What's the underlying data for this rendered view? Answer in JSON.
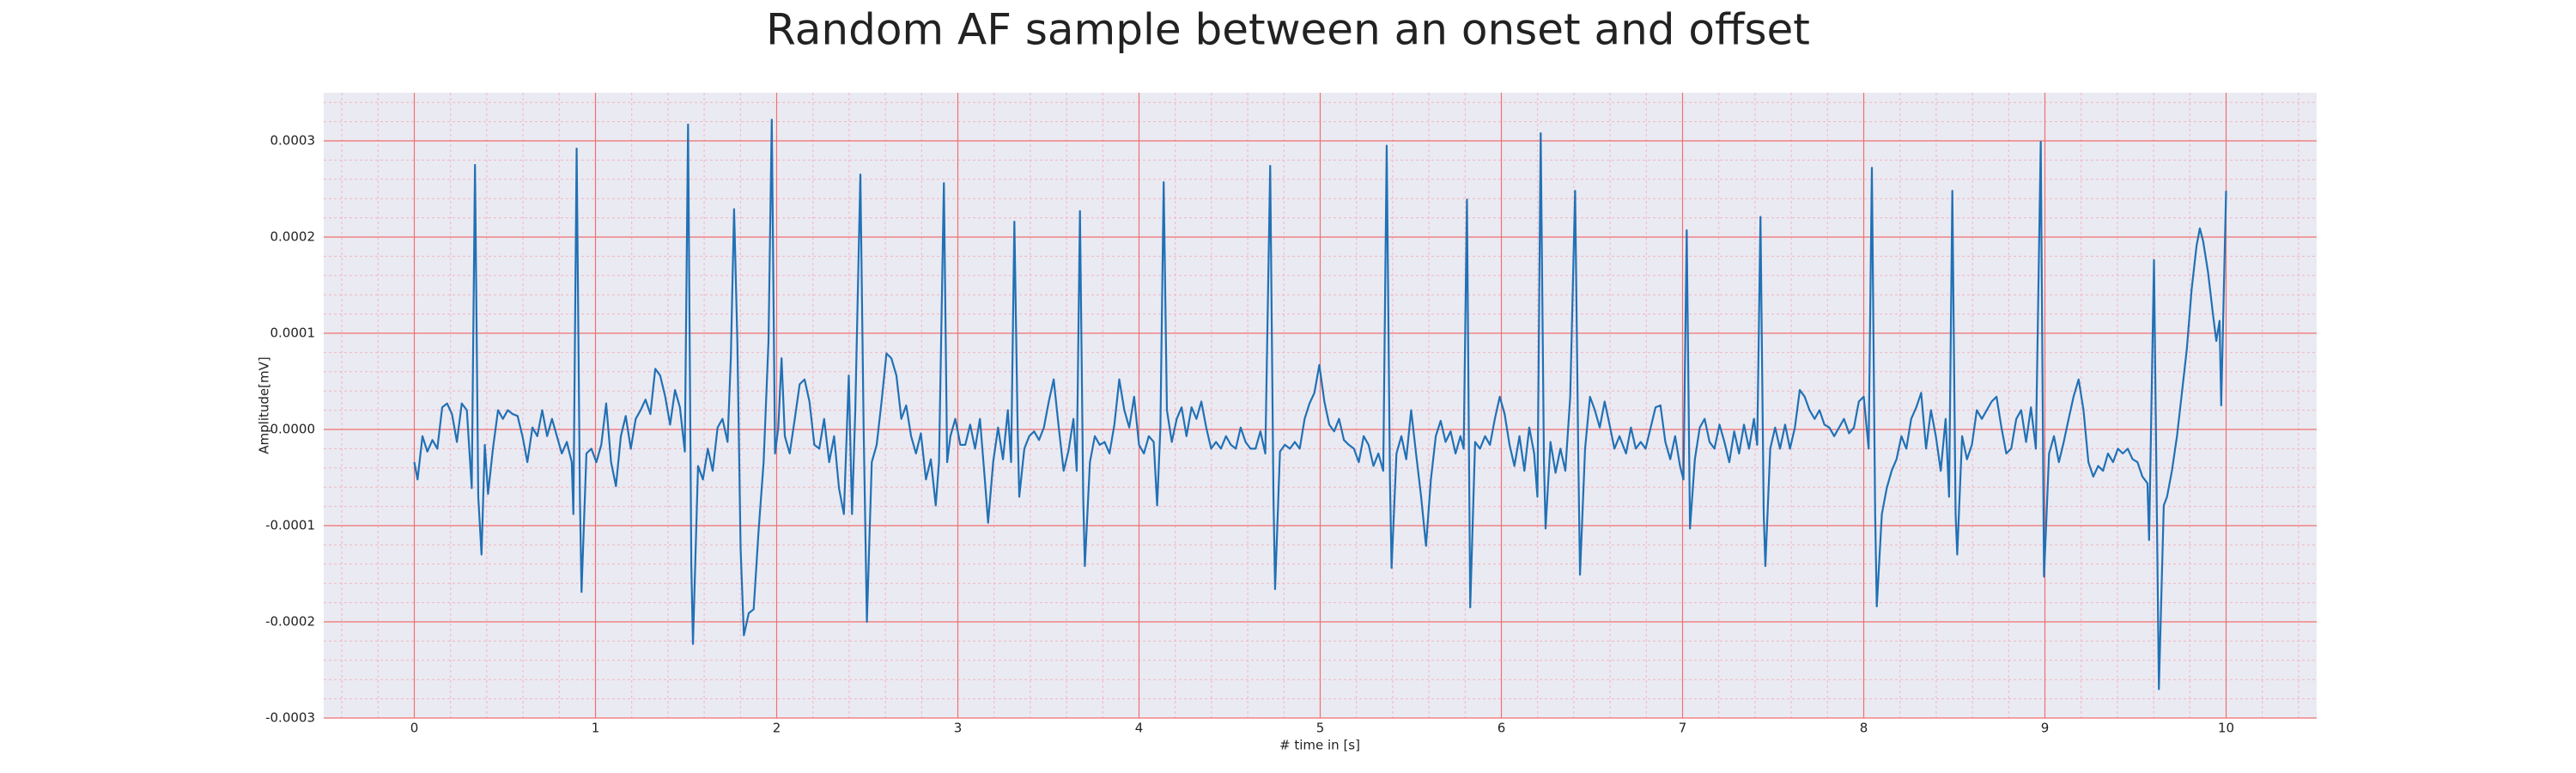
{
  "chart_data": {
    "type": "line",
    "title": "Random AF sample between an onset and offset",
    "x_label": "# time in [s]",
    "y_label": "Amplitude[mV]",
    "color": "#2171b5",
    "grid": true,
    "minor_grid": true,
    "grid_color": "#f07070",
    "minor_grid_color": "#f3b5c0",
    "background": "#eaeaf2",
    "xlim": [
      -0.5,
      10.5
    ],
    "ylim": [
      -0.0003,
      0.00035
    ],
    "xticks": [
      0,
      1,
      2,
      3,
      4,
      5,
      6,
      7,
      8,
      9,
      10
    ],
    "yticks": [
      -0.0003,
      -0.0002,
      -0.0001,
      {
        "value": 0,
        "label": "0.0000"
      },
      0.0001,
      0.0002,
      0.0003
    ],
    "x": [
      0,
      0.018,
      0.045,
      0.072,
      0.1,
      0.127,
      0.154,
      0.181,
      0.208,
      0.235,
      0.262,
      0.29,
      0.317,
      0.335,
      0.353,
      0.371,
      0.389,
      0.407,
      0.434,
      0.462,
      0.489,
      0.516,
      0.543,
      0.57,
      0.597,
      0.624,
      0.652,
      0.679,
      0.706,
      0.733,
      0.76,
      0.787,
      0.814,
      0.842,
      0.869,
      0.878,
      0.896,
      0.914,
      0.923,
      0.95,
      0.977,
      1.005,
      1.032,
      1.059,
      1.086,
      1.113,
      1.14,
      1.167,
      1.195,
      1.222,
      1.249,
      1.276,
      1.303,
      1.33,
      1.357,
      1.385,
      1.412,
      1.439,
      1.466,
      1.493,
      1.511,
      1.529,
      1.538,
      1.566,
      1.593,
      1.62,
      1.647,
      1.674,
      1.701,
      1.729,
      1.747,
      1.765,
      1.783,
      1.801,
      1.819,
      1.846,
      1.873,
      1.9,
      1.928,
      1.955,
      1.973,
      1.991,
      2.009,
      2.027,
      2.045,
      2.072,
      2.1,
      2.127,
      2.154,
      2.181,
      2.208,
      2.235,
      2.262,
      2.29,
      2.317,
      2.344,
      2.371,
      2.398,
      2.416,
      2.434,
      2.462,
      2.48,
      2.498,
      2.525,
      2.552,
      2.579,
      2.606,
      2.633,
      2.661,
      2.688,
      2.715,
      2.742,
      2.769,
      2.796,
      2.824,
      2.851,
      2.878,
      2.896,
      2.923,
      2.941,
      2.959,
      2.986,
      3.014,
      3.041,
      3.068,
      3.095,
      3.122,
      3.149,
      3.167,
      3.195,
      3.222,
      3.249,
      3.276,
      3.294,
      3.312,
      3.33,
      3.339,
      3.367,
      3.394,
      3.421,
      3.448,
      3.475,
      3.502,
      3.529,
      3.557,
      3.584,
      3.611,
      3.638,
      3.656,
      3.674,
      3.692,
      3.701,
      3.729,
      3.756,
      3.783,
      3.81,
      3.837,
      3.864,
      3.891,
      3.919,
      3.946,
      3.973,
      4.0,
      4.027,
      4.054,
      4.081,
      4.1,
      4.118,
      4.136,
      4.154,
      4.181,
      4.208,
      4.235,
      4.262,
      4.29,
      4.317,
      4.344,
      4.371,
      4.398,
      4.425,
      4.452,
      4.48,
      4.507,
      4.534,
      4.561,
      4.588,
      4.615,
      4.643,
      4.67,
      4.697,
      4.724,
      4.742,
      4.751,
      4.778,
      4.805,
      4.833,
      4.86,
      4.887,
      4.914,
      4.941,
      4.968,
      4.995,
      5.023,
      5.05,
      5.077,
      5.104,
      5.131,
      5.158,
      5.186,
      5.213,
      5.24,
      5.267,
      5.294,
      5.321,
      5.348,
      5.367,
      5.385,
      5.394,
      5.421,
      5.448,
      5.475,
      5.502,
      5.529,
      5.557,
      5.584,
      5.611,
      5.638,
      5.665,
      5.692,
      5.72,
      5.747,
      5.774,
      5.792,
      5.81,
      5.828,
      5.855,
      5.882,
      5.91,
      5.937,
      5.964,
      5.991,
      6.018,
      6.045,
      6.072,
      6.1,
      6.127,
      6.154,
      6.181,
      6.199,
      6.217,
      6.235,
      6.244,
      6.271,
      6.299,
      6.326,
      6.353,
      6.38,
      6.407,
      6.425,
      6.434,
      6.462,
      6.489,
      6.516,
      6.543,
      6.57,
      6.597,
      6.624,
      6.652,
      6.688,
      6.715,
      6.742,
      6.769,
      6.796,
      6.824,
      6.851,
      6.878,
      6.905,
      6.932,
      6.959,
      6.986,
      7.005,
      7.023,
      7.041,
      7.068,
      7.095,
      7.122,
      7.149,
      7.176,
      7.204,
      7.231,
      7.258,
      7.285,
      7.312,
      7.339,
      7.367,
      7.394,
      7.412,
      7.43,
      7.448,
      7.457,
      7.484,
      7.511,
      7.538,
      7.566,
      7.593,
      7.62,
      7.647,
      7.674,
      7.701,
      7.729,
      7.756,
      7.783,
      7.81,
      7.837,
      7.864,
      7.891,
      7.919,
      7.946,
      7.973,
      8.0,
      8.027,
      8.045,
      8.063,
      8.072,
      8.1,
      8.127,
      8.154,
      8.181,
      8.208,
      8.235,
      8.262,
      8.29,
      8.317,
      8.344,
      8.371,
      8.398,
      8.425,
      8.452,
      8.471,
      8.489,
      8.507,
      8.516,
      8.543,
      8.57,
      8.597,
      8.624,
      8.652,
      8.679,
      8.706,
      8.733,
      8.76,
      8.787,
      8.814,
      8.842,
      8.869,
      8.896,
      8.923,
      8.95,
      8.977,
      8.995,
      9.023,
      9.05,
      9.077,
      9.104,
      9.131,
      9.158,
      9.186,
      9.213,
      9.24,
      9.267,
      9.294,
      9.321,
      9.348,
      9.376,
      9.403,
      9.43,
      9.457,
      9.484,
      9.511,
      9.538,
      9.566,
      9.575,
      9.602,
      9.629,
      9.656,
      9.674,
      9.701,
      9.729,
      9.756,
      9.783,
      9.81,
      9.837,
      9.855,
      9.873,
      9.9,
      9.928,
      9.946,
      9.964,
      9.973,
      10.0
    ],
    "values": [
      -3.4e-05,
      -5.2e-05,
      -7e-06,
      -2.3e-05,
      -1.1e-05,
      -2e-05,
      2.3e-05,
      2.7e-05,
      1.6e-05,
      -1.3e-05,
      2.7e-05,
      2e-05,
      -6.1e-05,
      0.000275,
      -7e-05,
      -0.00013,
      -1.6e-05,
      -6.7e-05,
      -2e-05,
      2e-05,
      1.1e-05,
      2e-05,
      1.6e-05,
      1.4e-05,
      -7e-06,
      -3.4e-05,
      2e-06,
      -7e-06,
      2e-05,
      -7e-06,
      1.1e-05,
      -7e-06,
      -2.5e-05,
      -1.3e-05,
      -3.4e-05,
      -8.8e-05,
      0.000292,
      -7e-05,
      -0.000169,
      -2.5e-05,
      -2e-05,
      -3.4e-05,
      -1.6e-05,
      2.7e-05,
      -3.4e-05,
      -5.9e-05,
      -7e-06,
      1.4e-05,
      -2e-05,
      1.1e-05,
      2e-05,
      3.1e-05,
      1.6e-05,
      6.3e-05,
      5.6e-05,
      3.4e-05,
      5e-06,
      4.1e-05,
      2.3e-05,
      -2.3e-05,
      0.000317,
      -0.000142,
      -0.000223,
      -3.8e-05,
      -5.2e-05,
      -2e-05,
      -4.3e-05,
      2e-06,
      1.1e-05,
      -1.3e-05,
      7.4e-05,
      0.000229,
      9.2e-05,
      -0.000124,
      -0.000214,
      -0.000191,
      -0.000187,
      -0.000106,
      -3.4e-05,
      9.2e-05,
      0.000322,
      -2.5e-05,
      2e-06,
      7.4e-05,
      -7e-06,
      -2.5e-05,
      1.1e-05,
      4.7e-05,
      5.2e-05,
      2.9e-05,
      -1.6e-05,
      -2e-05,
      1.1e-05,
      -3.4e-05,
      -7e-06,
      -6.1e-05,
      -8.8e-05,
      5.6e-05,
      -8.8e-05,
      2e-05,
      0.000265,
      2e-06,
      -0.0002,
      -3.4e-05,
      -1.6e-05,
      2.9e-05,
      7.9e-05,
      7.4e-05,
      5.6e-05,
      1.1e-05,
      2.5e-05,
      -7e-06,
      -2.5e-05,
      -4e-06,
      -5.2e-05,
      -3.1e-05,
      -7.9e-05,
      -3.4e-05,
      0.000256,
      -3.4e-05,
      -7e-06,
      1.1e-05,
      -1.6e-05,
      -1.6e-05,
      5e-06,
      -2e-05,
      1.1e-05,
      -5.2e-05,
      -9.7e-05,
      -3.4e-05,
      2e-06,
      -3.1e-05,
      2e-05,
      -3.4e-05,
      0.000216,
      2e-06,
      -7e-05,
      -2e-05,
      -7e-06,
      -2e-06,
      -1.1e-05,
      2e-06,
      2.9e-05,
      5.2e-05,
      2e-06,
      -4.3e-05,
      -2.2e-05,
      1.1e-05,
      -4.3e-05,
      0.000227,
      -7e-05,
      -0.000142,
      -3.4e-05,
      -7e-06,
      -1.6e-05,
      -1.3e-05,
      -2.5e-05,
      5e-06,
      5.2e-05,
      2e-05,
      2e-06,
      3.4e-05,
      -1.6e-05,
      -2.5e-05,
      -7e-06,
      -1.3e-05,
      -7.9e-05,
      2e-06,
      0.000257,
      2e-05,
      -1.3e-05,
      1.1e-05,
      2.3e-05,
      -7e-06,
      2.3e-05,
      1.1e-05,
      2.9e-05,
      2e-06,
      -2e-05,
      -1.3e-05,
      -2e-05,
      -7e-06,
      -1.6e-05,
      -2e-05,
      2e-06,
      -1.3e-05,
      -2e-05,
      -2e-05,
      -2e-06,
      -2.5e-05,
      0.000274,
      -7e-05,
      -0.000166,
      -2.3e-05,
      -1.6e-05,
      -2e-05,
      -1.3e-05,
      -2e-05,
      1.1e-05,
      2.7e-05,
      3.8e-05,
      6.7e-05,
      2.9e-05,
      5e-06,
      -2e-06,
      1.1e-05,
      -1.1e-05,
      -1.6e-05,
      -2e-05,
      -3.4e-05,
      -7e-06,
      -1.6e-05,
      -3.8e-05,
      -2.5e-05,
      -4.3e-05,
      0.000295,
      -5.2e-05,
      -0.000144,
      -2.5e-05,
      -7e-06,
      -3.1e-05,
      2e-05,
      -2.5e-05,
      -7e-05,
      -0.000121,
      -5.2e-05,
      -7e-06,
      9e-06,
      -1.3e-05,
      -2e-06,
      -2.5e-05,
      -7e-06,
      -2e-05,
      0.000239,
      -0.000185,
      -1.3e-05,
      -2e-05,
      -7e-06,
      -1.6e-05,
      1.1e-05,
      3.4e-05,
      1.6e-05,
      -1.6e-05,
      -3.8e-05,
      -7e-06,
      -4.3e-05,
      2e-06,
      -2.5e-05,
      -7e-05,
      0.000308,
      -3.4e-05,
      -0.000103,
      -1.3e-05,
      -4.5e-05,
      -2e-05,
      -4.3e-05,
      3.4e-05,
      0.000248,
      -3.4e-05,
      -0.000151,
      -2e-05,
      3.4e-05,
      2e-05,
      2e-06,
      2.9e-05,
      5e-06,
      -2e-05,
      -7e-06,
      -2.5e-05,
      2e-06,
      -2e-05,
      -1.3e-05,
      -2e-05,
      2e-06,
      2.3e-05,
      2.5e-05,
      -1.3e-05,
      -3.1e-05,
      -7e-06,
      -3.8e-05,
      -5.2e-05,
      0.000207,
      -0.000103,
      -3.1e-05,
      2e-06,
      1.1e-05,
      -1.3e-05,
      -2e-05,
      5e-06,
      -1.3e-05,
      -3.4e-05,
      -2e-06,
      -2.5e-05,
      5e-06,
      -2e-05,
      1.1e-05,
      -1.6e-05,
      0.000221,
      -8.8e-05,
      -0.000142,
      -2e-05,
      2e-06,
      -2e-05,
      5e-06,
      -2e-05,
      2e-06,
      4.1e-05,
      3.4e-05,
      2e-05,
      1.1e-05,
      2e-05,
      5e-06,
      2e-06,
      -7e-06,
      2e-06,
      1.1e-05,
      -4e-06,
      2e-06,
      2.9e-05,
      3.4e-05,
      -2e-05,
      0.000272,
      -8.8e-05,
      -0.000184,
      -8.8e-05,
      -6.1e-05,
      -4.3e-05,
      -3.1e-05,
      -7e-06,
      -2e-05,
      1.1e-05,
      2.3e-05,
      3.8e-05,
      -2e-05,
      2e-05,
      -7e-06,
      -4.3e-05,
      1.1e-05,
      -7e-05,
      0.000248,
      -8.8e-05,
      -0.00013,
      -7e-06,
      -3.1e-05,
      -1.6e-05,
      2e-05,
      1.1e-05,
      2e-05,
      2.9e-05,
      3.4e-05,
      2e-06,
      -2.5e-05,
      -2e-05,
      1.1e-05,
      2e-05,
      -1.3e-05,
      2.3e-05,
      -2e-05,
      0.000299,
      -0.000153,
      -2.5e-05,
      -7e-06,
      -3.4e-05,
      -1.3e-05,
      1.1e-05,
      3.4e-05,
      5.2e-05,
      2e-05,
      -3.4e-05,
      -4.9e-05,
      -3.8e-05,
      -4.3e-05,
      -2.5e-05,
      -3.4e-05,
      -2e-05,
      -2.5e-05,
      -2e-05,
      -3.1e-05,
      -3.4e-05,
      -4.9e-05,
      -5.6e-05,
      -0.000115,
      0.000176,
      -0.00027,
      -7.9e-05,
      -7e-05,
      -4.3e-05,
      -7e-06,
      3.8e-05,
      8.3e-05,
      0.000146,
      0.000191,
      0.000209,
      0.000196,
      0.000164,
      0.000119,
      9.2e-05,
      0.000113,
      2.5e-05,
      0.000248
    ]
  }
}
